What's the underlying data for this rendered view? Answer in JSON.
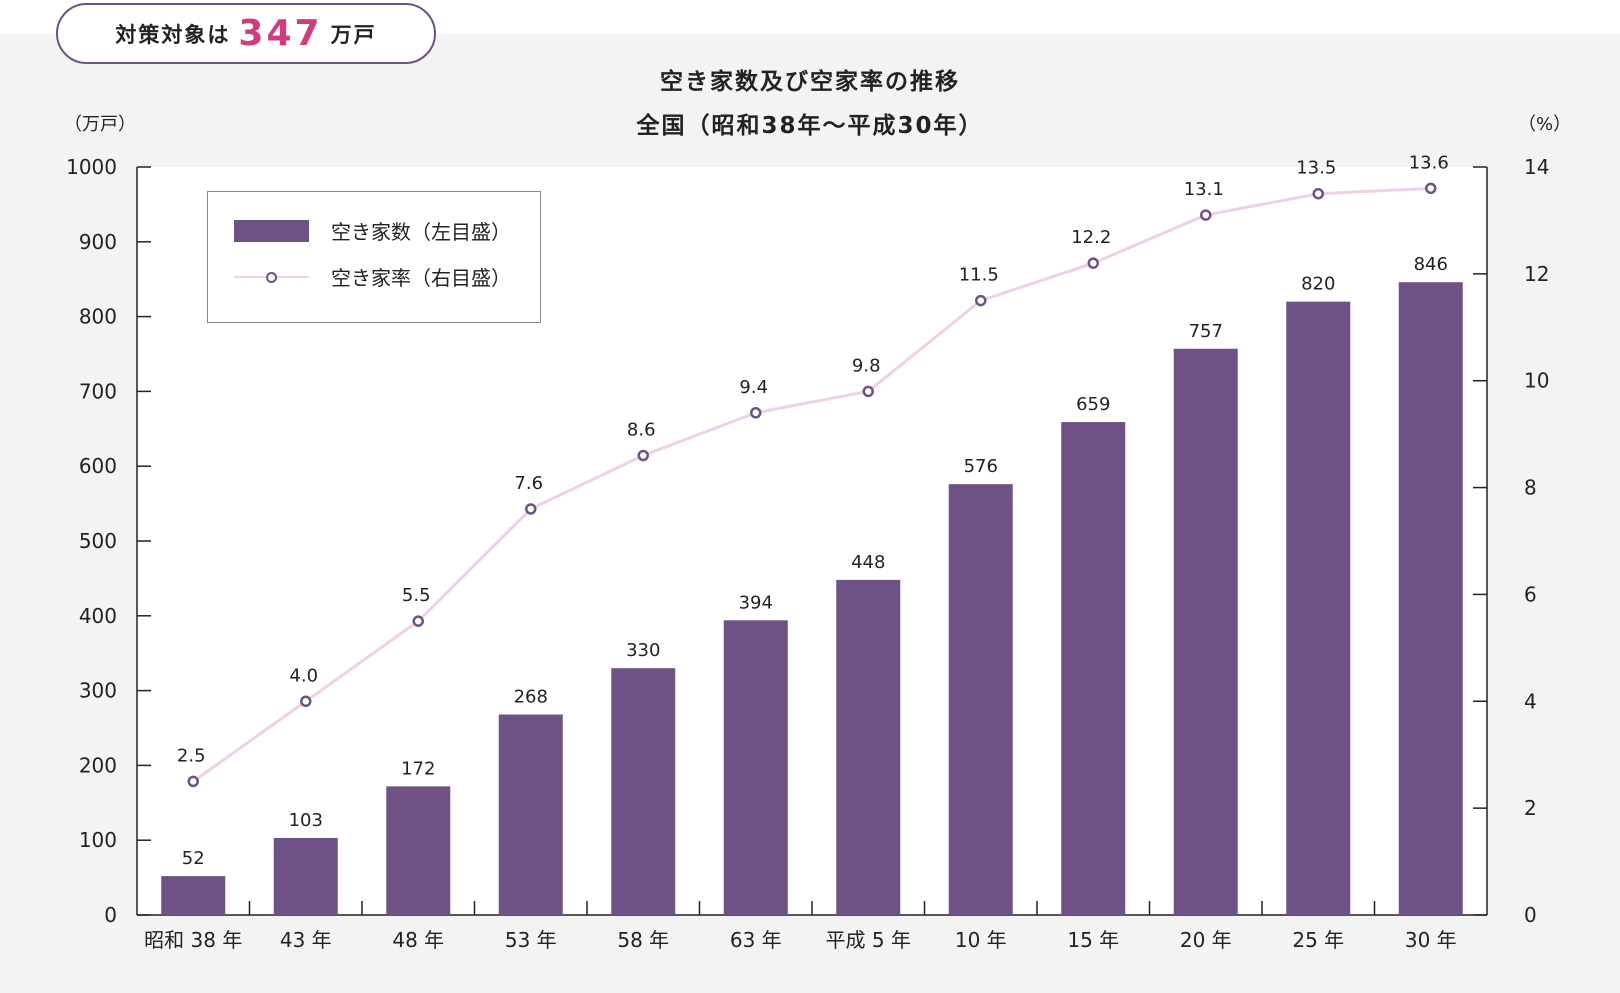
{
  "badge": {
    "prefix": "対策対象は",
    "number": "347",
    "suffix": "万戸"
  },
  "chart_data": {
    "type": "bar+line",
    "title": "空き家数及び空家率の推移",
    "subtitle": "全国（昭和38年〜平成30年）",
    "y_left_unit": "（万戸）",
    "y_right_unit": "（%）",
    "y_left_lim": [
      0,
      1000
    ],
    "y_left_ticks": [
      0,
      100,
      200,
      300,
      400,
      500,
      600,
      700,
      800,
      900,
      1000
    ],
    "y_right_lim": [
      0,
      14
    ],
    "y_right_ticks": [
      0,
      2,
      4,
      6,
      8,
      10,
      12,
      14
    ],
    "categories": [
      "昭和 38 年",
      "43 年",
      "48 年",
      "53 年",
      "58 年",
      "63 年",
      "平成 5 年",
      "10 年",
      "15 年",
      "20 年",
      "25 年",
      "30 年"
    ],
    "series": [
      {
        "name": "空き家数（左目盛）",
        "type": "bar",
        "axis": "left",
        "values": [
          52,
          103,
          172,
          268,
          330,
          394,
          448,
          576,
          659,
          757,
          820,
          846
        ],
        "labels": [
          "52",
          "103",
          "172",
          "268",
          "330",
          "394",
          "448",
          "576",
          "659",
          "757",
          "820",
          "846"
        ]
      },
      {
        "name": "空き家率（右目盛）",
        "type": "line",
        "axis": "right",
        "values": [
          2.5,
          4.0,
          5.5,
          7.6,
          8.6,
          9.4,
          9.8,
          11.5,
          12.2,
          13.1,
          13.5,
          13.6
        ],
        "labels": [
          "2.5",
          "4.0",
          "5.5",
          "7.6",
          "8.6",
          "9.4",
          "9.8",
          "11.5",
          "12.2",
          "13.1",
          "13.5",
          "13.6"
        ]
      }
    ],
    "legend_position": "top-left",
    "grid": false,
    "colors": {
      "bar": "#6e5285",
      "line": "#f0cfe8",
      "marker_edge": "#6e5285",
      "accent": "#d13c7e"
    }
  }
}
